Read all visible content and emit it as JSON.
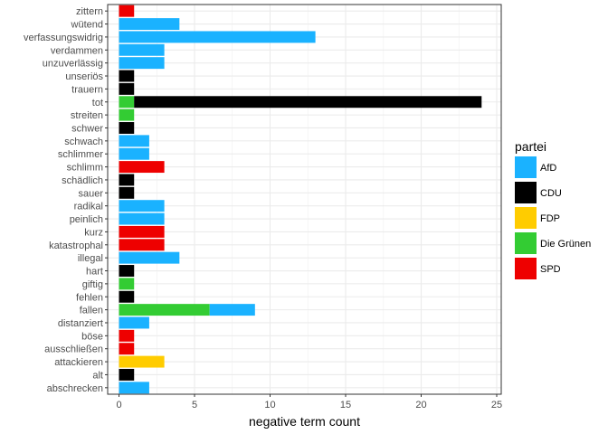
{
  "chart_data": {
    "type": "bar",
    "orientation": "horizontal",
    "stacked": true,
    "xlabel": "negative term count",
    "ylabel": "",
    "xlim": [
      0,
      25
    ],
    "x_ticks": [
      "0",
      "5",
      "10",
      "15",
      "20",
      "25"
    ],
    "grid": true,
    "legend": {
      "title": "partei",
      "position": "right"
    },
    "categories": [
      "zittern",
      "wütend",
      "verfassungswidrig",
      "verdammen",
      "unzuverlässig",
      "unseriös",
      "trauern",
      "tot",
      "streiten",
      "schwer",
      "schwach",
      "schlimmer",
      "schlimm",
      "schädlich",
      "sauer",
      "radikal",
      "peinlich",
      "kurz",
      "katastrophal",
      "illegal",
      "hart",
      "giftig",
      "fehlen",
      "fallen",
      "distanziert",
      "böse",
      "ausschließen",
      "attackieren",
      "alt",
      "abschrecken"
    ],
    "series": [
      {
        "name": "AfD",
        "color": "#1AB2FF",
        "values": [
          0,
          4,
          13,
          3,
          3,
          0,
          0,
          0,
          0,
          0,
          2,
          2,
          0,
          0,
          0,
          3,
          3,
          0,
          0,
          4,
          0,
          0,
          0,
          3,
          2,
          0,
          0,
          0,
          0,
          2
        ]
      },
      {
        "name": "CDU",
        "color": "#000000",
        "values": [
          0,
          0,
          0,
          0,
          0,
          1,
          1,
          23,
          0,
          1,
          0,
          0,
          0,
          1,
          1,
          0,
          0,
          0,
          0,
          0,
          1,
          0,
          1,
          0,
          0,
          0,
          0,
          0,
          1,
          0
        ]
      },
      {
        "name": "FDP",
        "color": "#FFCC00",
        "values": [
          0,
          0,
          0,
          0,
          0,
          0,
          0,
          0,
          0,
          0,
          0,
          0,
          0,
          0,
          0,
          0,
          0,
          0,
          0,
          0,
          0,
          0,
          0,
          0,
          0,
          0,
          0,
          3,
          0,
          0
        ]
      },
      {
        "name": "Die Grünen",
        "color": "#33CC33",
        "values": [
          0,
          0,
          0,
          0,
          0,
          0,
          0,
          1,
          1,
          0,
          0,
          0,
          0,
          0,
          0,
          0,
          0,
          0,
          0,
          0,
          0,
          1,
          0,
          6,
          0,
          0,
          0,
          0,
          0,
          0
        ]
      },
      {
        "name": "SPD",
        "color": "#EE0000",
        "values": [
          1,
          0,
          0,
          0,
          0,
          0,
          0,
          0,
          0,
          0,
          0,
          0,
          3,
          0,
          0,
          0,
          0,
          3,
          3,
          0,
          0,
          0,
          0,
          0,
          0,
          1,
          1,
          0,
          0,
          0
        ]
      }
    ],
    "stack_order_from_zero": [
      "Die Grünen",
      "AfD",
      "CDU",
      "FDP",
      "SPD"
    ]
  }
}
